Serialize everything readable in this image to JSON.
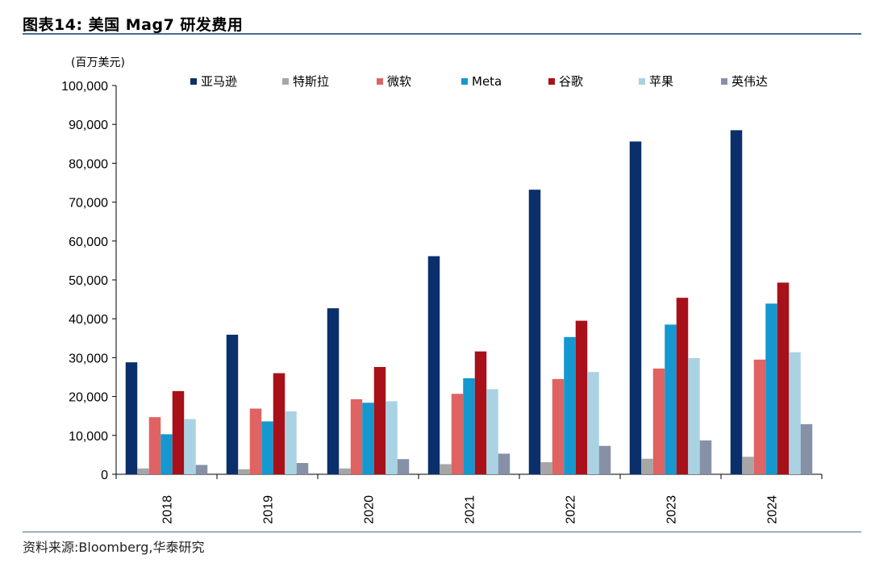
{
  "header": {
    "title": "图表14:  美国 Mag7 研发费用"
  },
  "footer": {
    "source": "资料来源:Bloomberg,华泰研究"
  },
  "chart_data": {
    "type": "bar",
    "unit_label": "(百万美元)",
    "categories": [
      "2018",
      "2019",
      "2020",
      "2021",
      "2022",
      "2023",
      "2024"
    ],
    "ylim": [
      0,
      100000
    ],
    "y_ticks": [
      "0",
      "10,000",
      "20,000",
      "30,000",
      "40,000",
      "50,000",
      "60,000",
      "70,000",
      "80,000",
      "90,000",
      "100,000"
    ],
    "legend_position": "top",
    "grid": false,
    "series": [
      {
        "name": "亚马逊",
        "color": "#0b2f6b",
        "values": [
          28800,
          35900,
          42700,
          56100,
          73200,
          85600,
          88500
        ]
      },
      {
        "name": "特斯拉",
        "color": "#a6a6a6",
        "values": [
          1500,
          1300,
          1500,
          2600,
          3100,
          4000,
          4500
        ]
      },
      {
        "name": "微软",
        "color": "#e06363",
        "values": [
          14700,
          16900,
          19300,
          20700,
          24500,
          27200,
          29500
        ]
      },
      {
        "name": "Meta",
        "color": "#1597cf",
        "values": [
          10300,
          13600,
          18400,
          24700,
          35300,
          38500,
          43900
        ]
      },
      {
        "name": "谷歌",
        "color": "#a8111a",
        "values": [
          21400,
          26000,
          27600,
          31600,
          39500,
          45400,
          49300
        ]
      },
      {
        "name": "苹果",
        "color": "#a9d3e2",
        "values": [
          14200,
          16200,
          18800,
          21900,
          26300,
          29900,
          31400
        ]
      },
      {
        "name": "英伟达",
        "color": "#8691a8",
        "values": [
          2400,
          2900,
          3900,
          5300,
          7300,
          8700,
          12900
        ]
      }
    ]
  }
}
